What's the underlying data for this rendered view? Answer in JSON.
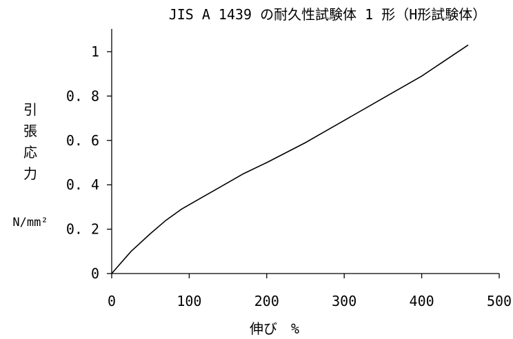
{
  "chart_data": {
    "type": "line",
    "title": "JIS A 1439 の耐久性試験体 1 形（H形試験体）",
    "xlabel": "伸び　%",
    "ylabel": "引張応力",
    "ylabel_unit": "N/mm²",
    "xlim": [
      0,
      500
    ],
    "ylim": [
      0,
      1.1
    ],
    "x_ticks": [
      0,
      100,
      200,
      300,
      400,
      500
    ],
    "x_tick_labels": [
      "0",
      "100",
      "200",
      "300",
      "400",
      "500"
    ],
    "y_ticks": [
      0,
      0.2,
      0.4,
      0.6,
      0.8,
      1
    ],
    "y_tick_labels": [
      "0",
      "0. 2",
      "0. 4",
      "0. 6",
      "0. 8",
      "1"
    ],
    "grid": false,
    "legend": "none",
    "line_color": "#000000",
    "series": [
      {
        "x": [
          0,
          10,
          25,
          50,
          70,
          90,
          110,
          140,
          170,
          200,
          250,
          270,
          300,
          350,
          400,
          460
        ],
        "y": [
          0,
          0.04,
          0.1,
          0.18,
          0.24,
          0.29,
          0.33,
          0.39,
          0.45,
          0.5,
          0.59,
          0.63,
          0.69,
          0.79,
          0.89,
          1.03
        ]
      }
    ]
  }
}
